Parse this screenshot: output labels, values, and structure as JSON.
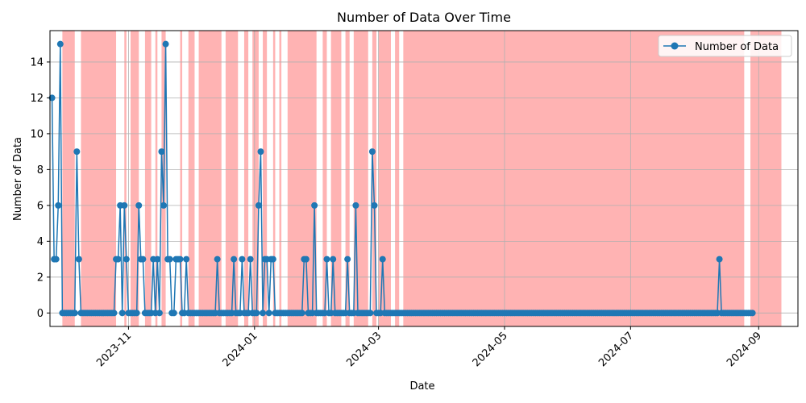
{
  "chart_data": {
    "type": "line",
    "title": "Number of Data Over Time",
    "xlabel": "Date",
    "ylabel": "Number of Data",
    "xlim": [
      "2023-09-24",
      "2024-09-20"
    ],
    "ylim": [
      -0.75,
      15.75
    ],
    "grid": true,
    "legend_position": "top-right",
    "colors": {
      "line": "#1f77b4",
      "shade": "#ff9999",
      "grid": "#b0b0b0"
    },
    "x_ticks": [
      {
        "date": "2023-11-01",
        "label": "2023-11"
      },
      {
        "date": "2024-01-01",
        "label": "2024-01"
      },
      {
        "date": "2024-03-01",
        "label": "2024-03"
      },
      {
        "date": "2024-05-01",
        "label": "2024-05"
      },
      {
        "date": "2024-07-01",
        "label": "2024-07"
      },
      {
        "date": "2024-09-01",
        "label": "2024-09"
      }
    ],
    "y_ticks": [
      0,
      2,
      4,
      6,
      8,
      10,
      12,
      14
    ],
    "series": [
      {
        "name": "Number of Data",
        "start_date": "2023-09-25",
        "values": [
          12,
          3,
          3,
          6,
          15,
          0,
          0,
          0,
          0,
          0,
          0,
          0,
          9,
          3,
          0,
          0,
          0,
          0,
          0,
          0,
          0,
          0,
          0,
          0,
          0,
          0,
          0,
          0,
          0,
          0,
          0,
          3,
          3,
          6,
          0,
          6,
          3,
          0,
          0,
          0,
          0,
          0,
          6,
          3,
          3,
          0,
          0,
          0,
          0,
          3,
          0,
          3,
          0,
          9,
          6,
          15,
          3,
          3,
          0,
          0,
          3,
          3,
          3,
          0,
          0,
          3,
          0,
          0,
          0,
          0,
          0,
          0,
          0,
          0,
          0,
          0,
          0,
          0,
          0,
          0,
          3,
          0,
          0,
          0,
          0,
          0,
          0,
          0,
          3,
          0,
          0,
          0,
          3,
          0,
          0,
          0,
          3,
          0,
          0,
          0,
          6,
          9,
          0,
          3,
          3,
          0,
          3,
          3,
          0,
          0,
          0,
          0,
          0,
          0,
          0,
          0,
          0,
          0,
          0,
          0,
          0,
          0,
          3,
          3,
          0,
          0,
          0,
          6,
          0,
          0,
          0,
          0,
          0,
          3,
          0,
          0,
          3,
          0,
          0,
          0,
          0,
          0,
          0,
          3,
          0,
          0,
          0,
          6,
          0,
          0,
          0,
          0,
          0,
          0,
          0,
          9,
          6,
          0,
          0,
          0,
          3,
          0,
          0,
          0,
          0,
          0,
          0,
          0,
          0,
          0,
          0,
          0,
          0,
          0,
          0,
          0,
          0,
          0,
          0,
          0,
          0,
          0,
          0,
          0,
          0,
          0,
          0,
          0,
          0,
          0,
          0,
          0,
          0,
          0,
          0,
          0,
          0,
          0,
          0,
          0,
          0,
          0,
          0,
          0,
          0,
          0,
          0,
          0,
          0,
          0,
          0,
          0,
          0,
          0,
          0,
          0,
          0,
          0,
          0,
          0,
          0,
          0,
          0,
          0,
          0,
          0,
          0,
          0,
          0,
          0,
          0,
          0,
          0,
          0,
          0,
          0,
          0,
          0,
          0,
          0,
          0,
          0,
          0,
          0,
          0,
          0,
          0,
          0,
          0,
          0,
          0,
          0,
          0,
          0,
          0,
          0,
          0,
          0,
          0,
          0,
          0,
          0,
          0,
          0,
          0,
          0,
          0,
          0,
          0,
          0,
          0,
          0,
          0,
          0,
          0,
          0,
          0,
          0,
          0,
          0,
          0,
          0,
          0,
          0,
          0,
          0,
          0,
          0,
          0,
          0,
          0,
          0,
          0,
          0,
          0,
          0,
          0,
          0,
          0,
          0,
          0,
          0,
          0,
          0,
          0,
          0,
          0,
          0,
          0,
          0,
          0,
          0,
          0,
          0,
          0,
          0,
          0,
          0,
          0,
          0,
          0,
          0,
          0,
          3,
          0,
          0,
          0,
          0,
          0,
          0,
          0,
          0,
          0,
          0,
          0,
          0,
          0,
          0,
          0,
          0
        ]
      }
    ],
    "shaded_ranges": [
      [
        "2023-09-30",
        "2023-10-06"
      ],
      [
        "2023-10-09",
        "2023-10-26"
      ],
      [
        "2023-10-30",
        "2023-10-31"
      ],
      [
        "2023-11-02",
        "2023-11-06"
      ],
      [
        "2023-11-09",
        "2023-11-12"
      ],
      [
        "2023-11-14",
        "2023-11-15"
      ],
      [
        "2023-11-17",
        "2023-11-19"
      ],
      [
        "2023-11-26",
        "2023-11-27"
      ],
      [
        "2023-11-30",
        "2023-12-03"
      ],
      [
        "2023-12-05",
        "2023-12-16"
      ],
      [
        "2023-12-18",
        "2023-12-24"
      ],
      [
        "2023-12-27",
        "2023-12-29"
      ],
      [
        "2023-12-31",
        "2024-01-03"
      ],
      [
        "2024-01-05",
        "2024-01-07"
      ],
      [
        "2024-01-10",
        "2024-01-11"
      ],
      [
        "2024-01-13",
        "2024-01-14"
      ],
      [
        "2024-01-17",
        "2024-01-31"
      ],
      [
        "2024-02-03",
        "2024-02-05"
      ],
      [
        "2024-02-07",
        "2024-02-12"
      ],
      [
        "2024-02-14",
        "2024-02-16"
      ],
      [
        "2024-02-18",
        "2024-02-25"
      ],
      [
        "2024-02-27",
        "2024-02-29"
      ],
      [
        "2024-03-01",
        "2024-03-07"
      ],
      [
        "2024-03-09",
        "2024-03-11"
      ],
      [
        "2024-03-13",
        "2024-08-25"
      ],
      [
        "2024-08-28",
        "2024-09-12"
      ]
    ]
  }
}
